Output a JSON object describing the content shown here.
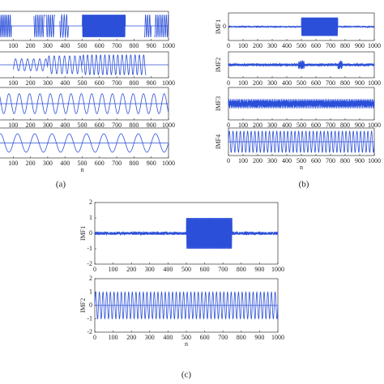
{
  "chart_data": [
    {
      "type": "line",
      "xlim": [
        0,
        1000
      ],
      "xticks": [
        100,
        200,
        300,
        400,
        500,
        600,
        700,
        800,
        900,
        1000
      ],
      "ylim": [
        -1.3,
        1.3
      ],
      "segments": [
        {
          "kind": "sine",
          "start": 0,
          "end": 90,
          "amplitude": 1,
          "period": 10
        },
        {
          "kind": "sine",
          "start": 220,
          "end": 280,
          "amplitude": 1,
          "period": 12
        },
        {
          "kind": "sine",
          "start": 290,
          "end": 340,
          "amplitude": 1,
          "period": 12
        },
        {
          "kind": "sine",
          "start": 370,
          "end": 420,
          "amplitude": 1,
          "period": 14
        },
        {
          "kind": "sine",
          "start": 500,
          "end": 750,
          "amplitude": 1,
          "period": 4
        },
        {
          "kind": "sine",
          "start": 860,
          "end": 900,
          "amplitude": 1,
          "period": 12
        },
        {
          "kind": "sine",
          "start": 920,
          "end": 1000,
          "amplitude": 1,
          "period": 12
        }
      ]
    },
    {
      "type": "line",
      "xlim": [
        0,
        1000
      ],
      "xticks": [
        100,
        200,
        300,
        400,
        500,
        600,
        700,
        800,
        900,
        1000
      ],
      "ylim": [
        -1.3,
        1.3
      ],
      "segments": [
        {
          "kind": "sine",
          "start": 100,
          "end": 300,
          "amplitude": 0.6,
          "period": 35
        },
        {
          "kind": "sine",
          "start": 300,
          "end": 500,
          "amplitude": 0.9,
          "period": 30
        },
        {
          "kind": "sine",
          "start": 500,
          "end": 870,
          "amplitude": 1,
          "period": 25
        }
      ]
    },
    {
      "type": "line",
      "xlim": [
        0,
        1000
      ],
      "xticks": [
        100,
        200,
        300,
        400,
        500,
        600,
        700,
        800,
        900,
        1000
      ],
      "ylim": [
        -1.3,
        1.3
      ],
      "segments": [
        {
          "kind": "sine",
          "start": 0,
          "end": 1000,
          "amplitude": 0.8,
          "period": 60
        }
      ]
    },
    {
      "type": "line",
      "xlim": [
        0,
        1000
      ],
      "xticks": [
        100,
        200,
        300,
        400,
        500,
        600,
        700,
        800,
        900,
        1000
      ],
      "ylim": [
        -1.3,
        1.3
      ],
      "xlabel": "n",
      "segments": [
        {
          "kind": "sine",
          "start": 0,
          "end": 1000,
          "amplitude": 0.8,
          "period": 100
        }
      ]
    },
    {
      "type": "line",
      "xlim": [
        0,
        1000
      ],
      "xticks": [
        0,
        100,
        200,
        300,
        400,
        500,
        600,
        700,
        800,
        900,
        1000
      ],
      "ylim": [
        -1.5,
        1.5
      ],
      "yticks": [
        0
      ],
      "ylabel": "IMF1",
      "segments": [
        {
          "kind": "noise",
          "start": 0,
          "end": 1000,
          "amplitude": 0.05
        },
        {
          "kind": "sine",
          "start": 500,
          "end": 750,
          "amplitude": 1,
          "period": 4
        }
      ]
    },
    {
      "type": "line",
      "xlim": [
        0,
        1000
      ],
      "xticks": [
        0,
        100,
        200,
        300,
        400,
        500,
        600,
        700,
        800,
        900,
        1000
      ],
      "ylim": [
        -1.5,
        1.5
      ],
      "ylabel": "IMF2",
      "segments": [
        {
          "kind": "noise",
          "start": 0,
          "end": 1000,
          "amplitude": 0.15
        },
        {
          "kind": "noise",
          "start": 480,
          "end": 520,
          "amplitude": 0.5
        },
        {
          "kind": "noise",
          "start": 750,
          "end": 780,
          "amplitude": 0.5
        }
      ]
    },
    {
      "type": "line",
      "xlim": [
        0,
        1000
      ],
      "xticks": [
        0,
        100,
        200,
        300,
        400,
        500,
        600,
        700,
        800,
        900,
        1000
      ],
      "ylim": [
        -1.5,
        1.5
      ],
      "ylabel": "IMF3",
      "segments": [
        {
          "kind": "noise",
          "start": 0,
          "end": 1000,
          "amplitude": 0.3
        },
        {
          "kind": "sine",
          "start": 0,
          "end": 1000,
          "amplitude": 0.4,
          "period": 12
        }
      ]
    },
    {
      "type": "line",
      "xlim": [
        0,
        1000
      ],
      "xticks": [
        0,
        100,
        200,
        300,
        400,
        500,
        600,
        700,
        800,
        900,
        1000
      ],
      "ylim": [
        -1.3,
        1.3
      ],
      "ylabel": "IMF4",
      "xlabel": "n",
      "segments": [
        {
          "kind": "sine",
          "start": 0,
          "end": 1000,
          "amplitude": 1,
          "period": 25
        }
      ]
    },
    {
      "type": "line",
      "xlim": [
        0,
        1000
      ],
      "xticks": [
        0,
        100,
        200,
        300,
        400,
        500,
        600,
        700,
        800,
        900,
        1000
      ],
      "ylim": [
        -2,
        2
      ],
      "yticks": [
        -2,
        -1,
        0,
        1,
        2
      ],
      "ylabel": "IMF1",
      "segments": [
        {
          "kind": "noise",
          "start": 0,
          "end": 1000,
          "amplitude": 0.1
        },
        {
          "kind": "sine",
          "start": 500,
          "end": 750,
          "amplitude": 1,
          "period": 4
        }
      ]
    },
    {
      "type": "line",
      "xlim": [
        0,
        1000
      ],
      "xticks": [
        0,
        100,
        200,
        300,
        400,
        500,
        600,
        700,
        800,
        900,
        1000
      ],
      "ylim": [
        -2,
        2
      ],
      "yticks": [
        -2,
        -1,
        0,
        1,
        2
      ],
      "ylabel": "IMF2",
      "xlabel": "n",
      "segments": [
        {
          "kind": "sine",
          "start": 0,
          "end": 1000,
          "amplitude": 1,
          "period": 20
        }
      ]
    }
  ],
  "captions": [
    "(a)",
    "(b)",
    "(c)"
  ]
}
